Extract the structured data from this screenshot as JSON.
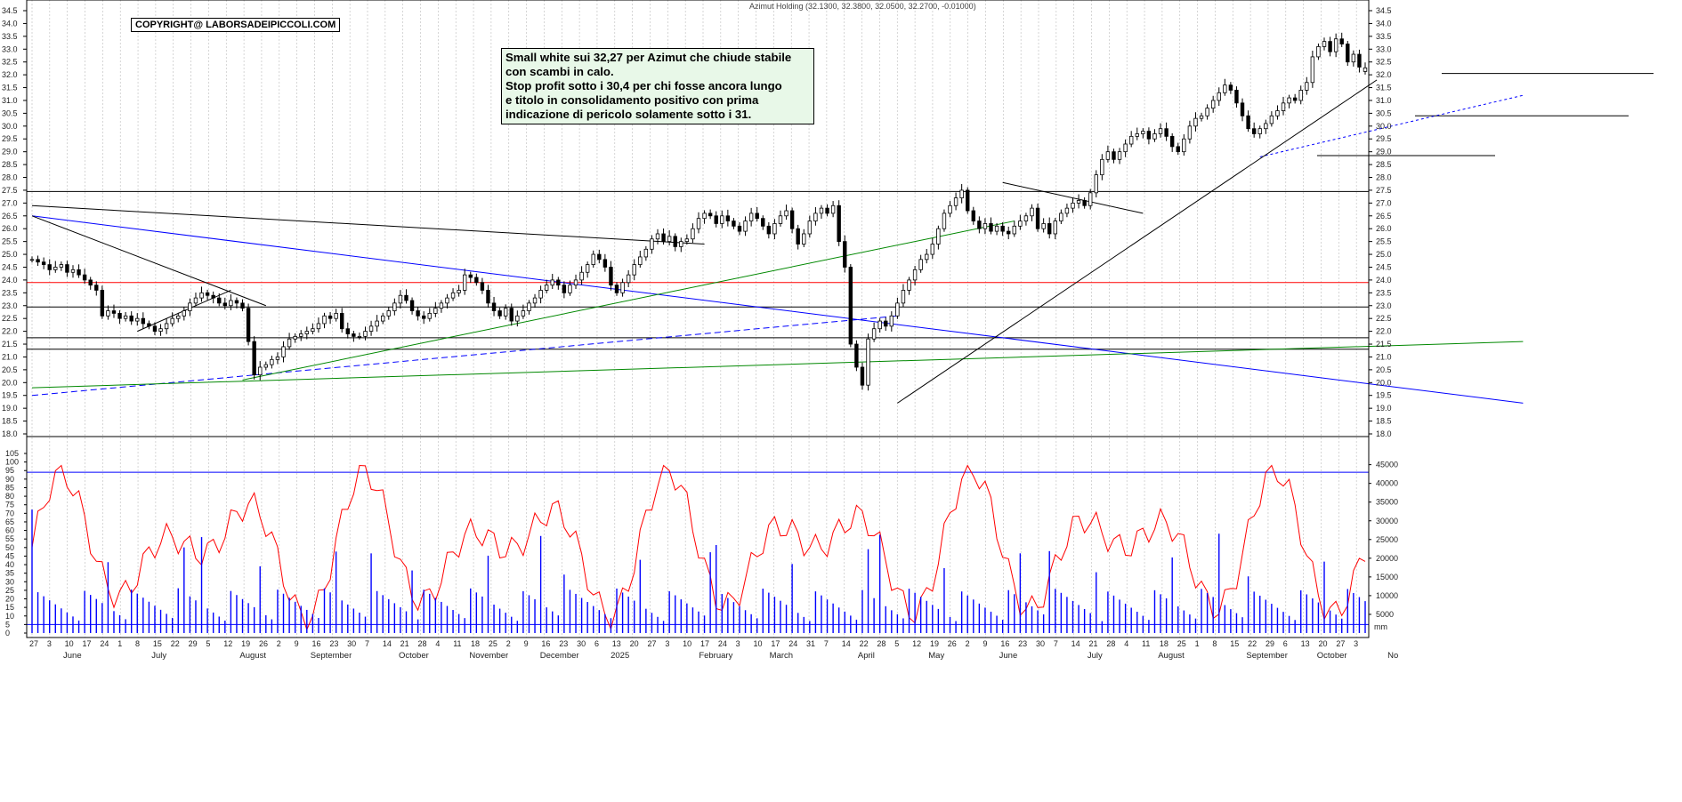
{
  "title": "Azimut Holding (32.1300, 32.3800, 32.0500, 32.2700, -0.01000)",
  "copyright": "COPYRIGHT@ LABORSADEIPICCOLI.COM",
  "annotation": [
    "Small white sui 32,27 per Azimut che chiude stabile",
    "con scambi in calo.",
    "Stop profit sotto i 30,4 per chi fosse ancora lungo",
    "e titolo in consolidamento positivo con prima",
    "indicazione di pericolo solamente sotto i 31."
  ],
  "chart_data": [
    {
      "type": "candlestick",
      "name": "price",
      "ylim": [
        18.0,
        34.5
      ],
      "yticks": [
        18.0,
        18.5,
        19.0,
        19.5,
        20.0,
        20.5,
        21.0,
        21.5,
        22.0,
        22.5,
        23.0,
        23.5,
        24.0,
        24.5,
        25.0,
        25.5,
        26.0,
        26.5,
        27.0,
        27.5,
        28.0,
        28.5,
        29.0,
        29.5,
        30.0,
        30.5,
        31.0,
        31.5,
        32.0,
        32.5,
        33.0,
        33.5,
        34.0,
        34.5
      ],
      "last": {
        "open": 32.13,
        "high": 32.38,
        "low": 32.05,
        "close": 32.27,
        "change": -0.01
      },
      "horizontal_levels": [
        {
          "value": 27.45,
          "color": "#000000"
        },
        {
          "value": 23.9,
          "color": "#ff0000"
        },
        {
          "value": 22.95,
          "color": "#000000"
        },
        {
          "value": 21.75,
          "color": "#000000"
        },
        {
          "value": 21.3,
          "color": "#000000"
        },
        {
          "value": 32.05,
          "color": "#000000"
        },
        {
          "value": 30.4,
          "color": "#000000"
        },
        {
          "value": 28.85,
          "color": "#000000"
        }
      ],
      "closes": [
        24.8,
        24.7,
        24.6,
        24.4,
        24.5,
        24.6,
        24.3,
        24.4,
        24.2,
        24.0,
        23.8,
        23.6,
        22.6,
        22.8,
        22.7,
        22.5,
        22.6,
        22.4,
        22.5,
        22.3,
        22.2,
        22.0,
        22.1,
        22.3,
        22.5,
        22.6,
        22.8,
        23.1,
        23.3,
        23.5,
        23.4,
        23.3,
        23.1,
        23.0,
        23.2,
        23.1,
        22.9,
        21.6,
        20.3,
        20.6,
        20.7,
        20.9,
        21.0,
        21.4,
        21.7,
        21.8,
        21.9,
        22.0,
        22.1,
        22.3,
        22.6,
        22.5,
        22.7,
        22.1,
        21.9,
        21.8,
        21.8,
        22.0,
        22.2,
        22.4,
        22.6,
        22.8,
        23.1,
        23.4,
        23.2,
        22.8,
        22.6,
        22.5,
        22.7,
        22.9,
        23.1,
        23.3,
        23.5,
        23.6,
        24.2,
        24.1,
        23.9,
        23.6,
        23.1,
        22.8,
        22.6,
        22.9,
        22.4,
        22.6,
        22.8,
        23.1,
        23.3,
        23.6,
        23.8,
        24.0,
        23.8,
        23.5,
        23.8,
        24.0,
        24.3,
        24.6,
        25.0,
        24.8,
        24.5,
        23.8,
        23.5,
        23.9,
        24.2,
        24.6,
        24.9,
        25.2,
        25.6,
        25.8,
        25.5,
        25.7,
        25.3,
        25.5,
        25.6,
        26.0,
        26.4,
        26.6,
        26.5,
        26.2,
        26.5,
        26.3,
        26.1,
        25.9,
        26.3,
        26.6,
        26.4,
        26.1,
        25.8,
        26.2,
        26.5,
        26.7,
        26.0,
        25.4,
        25.8,
        26.3,
        26.6,
        26.8,
        26.6,
        26.9,
        25.5,
        24.5,
        21.5,
        20.6,
        19.9,
        21.7,
        22.1,
        22.4,
        22.2,
        22.6,
        23.1,
        23.6,
        24.0,
        24.4,
        24.8,
        25.0,
        25.4,
        26.0,
        26.6,
        26.9,
        27.2,
        27.5,
        26.7,
        26.3,
        26.0,
        26.2,
        25.9,
        26.1,
        25.9,
        25.8,
        26.1,
        26.3,
        26.5,
        26.8,
        26.0,
        26.2,
        25.8,
        26.3,
        26.6,
        26.8,
        27.0,
        27.1,
        26.9,
        27.4,
        28.1,
        28.7,
        29.0,
        28.7,
        29.0,
        29.3,
        29.6,
        29.7,
        29.8,
        29.5,
        29.7,
        29.9,
        29.6,
        29.2,
        29.0,
        29.5,
        30.0,
        30.3,
        30.4,
        30.7,
        31.0,
        31.3,
        31.6,
        31.4,
        30.9,
        30.4,
        29.9,
        29.7,
        29.9,
        30.1,
        30.4,
        30.6,
        30.9,
        31.1,
        31.0,
        31.4,
        31.7,
        32.7,
        33.1,
        33.3,
        32.9,
        33.4,
        33.2,
        32.5,
        32.8,
        32.3,
        32.27
      ]
    },
    {
      "type": "line+bar",
      "name": "oscillator-and-volume",
      "left_ylim": [
        0,
        105
      ],
      "left_yticks": [
        0,
        5,
        10,
        15,
        20,
        25,
        30,
        35,
        40,
        45,
        50,
        55,
        60,
        65,
        70,
        75,
        80,
        85,
        90,
        95,
        100,
        105
      ],
      "right_ylim": [
        0,
        48000
      ],
      "right_yticks": [
        5000,
        10000,
        15000,
        20000,
        25000,
        30000,
        35000,
        40000,
        45000
      ],
      "oscillator_levels": [
        94,
        5
      ],
      "volume_unit": "mm"
    }
  ],
  "x_axis": {
    "day_ticks": [
      "27",
      "3",
      "10",
      "17",
      "24",
      "1",
      "8",
      "15",
      "22",
      "29",
      "5",
      "12",
      "19",
      "26",
      "2",
      "9",
      "16",
      "23",
      "30",
      "7",
      "14",
      "21",
      "28",
      "4",
      "11",
      "18",
      "25",
      "2",
      "9",
      "16",
      "23",
      "30",
      "6",
      "13",
      "20",
      "27",
      "3",
      "10",
      "17",
      "24",
      "3",
      "10",
      "17",
      "24",
      "31",
      "7",
      "14",
      "22",
      "28",
      "5",
      "12",
      "19",
      "26",
      "2",
      "9",
      "16",
      "23",
      "30",
      "7",
      "14",
      "21",
      "28",
      "4",
      "11",
      "18",
      "25",
      "1",
      "8",
      "15",
      "22",
      "29",
      "6",
      "13",
      "20",
      "27",
      "3"
    ],
    "months": [
      "June",
      "July",
      "August",
      "September",
      "October",
      "November",
      "December",
      "2025",
      "February",
      "March",
      "April",
      "May",
      "June",
      "July",
      "August",
      "September",
      "October",
      "No"
    ]
  },
  "colors": {
    "candle": "#000000",
    "blue_line": "#0000ff",
    "green_line": "#008800",
    "red_line": "#ff0000",
    "oscillator": "#ff0000",
    "volume": "#0000ff",
    "grid": "#bbbbbb"
  }
}
